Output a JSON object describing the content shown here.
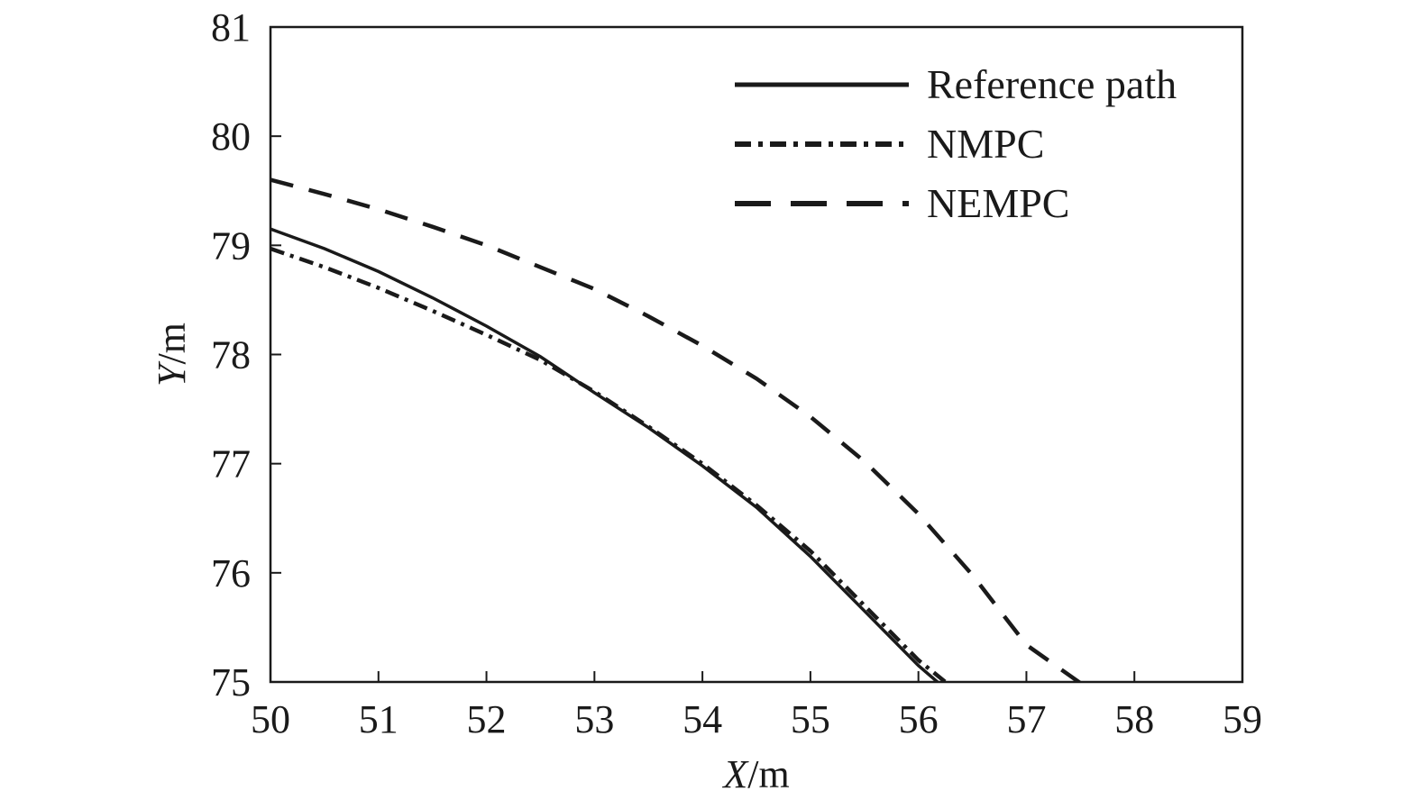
{
  "chart_data": {
    "type": "line",
    "xlabel": {
      "var": "X",
      "unit": "/m"
    },
    "ylabel": {
      "var": "Y",
      "unit": "/m"
    },
    "xlim": [
      50,
      59
    ],
    "ylim": [
      75,
      81
    ],
    "xticks": [
      "50",
      "51",
      "52",
      "53",
      "54",
      "55",
      "56",
      "57",
      "58",
      "59"
    ],
    "yticks": [
      "75",
      "76",
      "77",
      "78",
      "79",
      "80",
      "81"
    ],
    "grid": false,
    "legend_position": "top-right",
    "series": [
      {
        "name": "Reference path",
        "style": "solid",
        "color": "#1a1a1a",
        "x": [
          50.0,
          50.5,
          51.0,
          51.5,
          52.0,
          52.5,
          53.0,
          53.5,
          54.0,
          54.5,
          55.0,
          55.5,
          56.0,
          56.2
        ],
        "y": [
          79.15,
          78.97,
          78.76,
          78.52,
          78.26,
          77.98,
          77.65,
          77.33,
          76.98,
          76.6,
          76.15,
          75.65,
          75.15,
          74.98
        ]
      },
      {
        "name": "NMPC",
        "style": "dashdot",
        "color": "#1a1a1a",
        "x": [
          50.0,
          50.5,
          51.0,
          51.5,
          52.0,
          52.5,
          53.0,
          53.5,
          54.0,
          54.5,
          55.0,
          55.5,
          56.0,
          56.25
        ],
        "y": [
          78.97,
          78.8,
          78.61,
          78.4,
          78.18,
          77.95,
          77.66,
          77.34,
          77.0,
          76.62,
          76.2,
          75.7,
          75.2,
          75.0
        ]
      },
      {
        "name": "NEMPC",
        "style": "dashed",
        "color": "#1a1a1a",
        "x": [
          50.0,
          50.5,
          51.0,
          51.5,
          52.0,
          52.5,
          53.0,
          53.5,
          54.0,
          54.5,
          55.0,
          55.5,
          56.0,
          56.5,
          57.0,
          57.5
        ],
        "y": [
          79.6,
          79.47,
          79.33,
          79.17,
          79.0,
          78.8,
          78.6,
          78.35,
          78.08,
          77.78,
          77.43,
          77.02,
          76.54,
          75.98,
          75.34,
          74.99
        ]
      }
    ]
  }
}
